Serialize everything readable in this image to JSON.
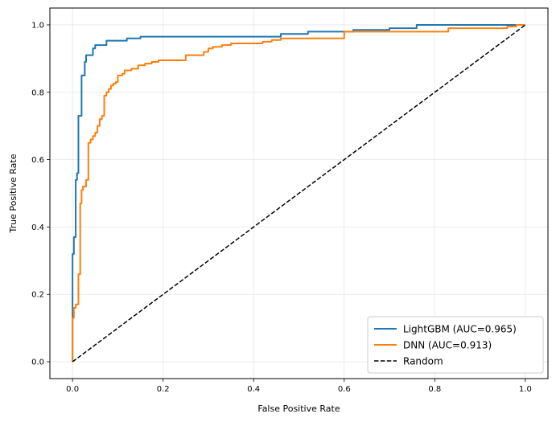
{
  "chart_data": {
    "type": "line",
    "xlabel": "False Positive Rate",
    "ylabel": "True Positive Rate",
    "xlim": [
      -0.05,
      1.05
    ],
    "ylim": [
      -0.05,
      1.05
    ],
    "xticks": [
      "0.0",
      "0.2",
      "0.4",
      "0.6",
      "0.8",
      "1.0"
    ],
    "yticks": [
      "0.0",
      "0.2",
      "0.4",
      "0.6",
      "0.8",
      "1.0"
    ],
    "grid": true,
    "legend_position": "lower-right",
    "series": [
      {
        "name": "LightGBM (AUC=0.965)",
        "color": "#1f77b4",
        "style": "solid",
        "x": [
          0.0,
          0.0,
          0.003,
          0.003,
          0.007,
          0.007,
          0.01,
          0.01,
          0.013,
          0.013,
          0.017,
          0.017,
          0.02,
          0.02,
          0.027,
          0.027,
          0.03,
          0.03,
          0.033,
          0.033,
          0.045,
          0.045,
          0.05,
          0.05,
          0.055,
          0.055,
          0.075,
          0.075,
          0.12,
          0.12,
          0.15,
          0.15,
          0.46,
          0.46,
          0.52,
          0.52,
          0.62,
          0.62,
          0.7,
          0.7,
          0.76,
          0.76,
          1.0
        ],
        "y": [
          0.0,
          0.32,
          0.32,
          0.37,
          0.37,
          0.54,
          0.54,
          0.56,
          0.56,
          0.73,
          0.73,
          0.73,
          0.73,
          0.85,
          0.85,
          0.89,
          0.89,
          0.91,
          0.91,
          0.91,
          0.91,
          0.93,
          0.93,
          0.94,
          0.94,
          0.94,
          0.94,
          0.953,
          0.953,
          0.96,
          0.96,
          0.965,
          0.965,
          0.973,
          0.973,
          0.98,
          0.98,
          0.985,
          0.985,
          0.99,
          0.99,
          1.0,
          1.0
        ]
      },
      {
        "name": "DNN (AUC=0.913)",
        "color": "#ff7f0e",
        "style": "solid",
        "x": [
          0.0,
          0.0,
          0.003,
          0.003,
          0.007,
          0.007,
          0.013,
          0.013,
          0.017,
          0.017,
          0.02,
          0.02,
          0.023,
          0.023,
          0.03,
          0.03,
          0.035,
          0.035,
          0.04,
          0.04,
          0.045,
          0.045,
          0.05,
          0.05,
          0.055,
          0.055,
          0.06,
          0.06,
          0.065,
          0.065,
          0.07,
          0.07,
          0.075,
          0.075,
          0.08,
          0.08,
          0.085,
          0.085,
          0.09,
          0.09,
          0.095,
          0.095,
          0.1,
          0.1,
          0.11,
          0.11,
          0.115,
          0.115,
          0.13,
          0.13,
          0.145,
          0.145,
          0.16,
          0.16,
          0.175,
          0.175,
          0.19,
          0.19,
          0.25,
          0.25,
          0.29,
          0.29,
          0.3,
          0.3,
          0.31,
          0.31,
          0.33,
          0.33,
          0.35,
          0.35,
          0.42,
          0.42,
          0.44,
          0.44,
          0.46,
          0.46,
          0.6,
          0.6,
          0.83,
          0.83,
          0.96,
          0.96,
          0.98,
          0.98,
          1.0
        ],
        "y": [
          0.0,
          0.13,
          0.13,
          0.16,
          0.16,
          0.17,
          0.17,
          0.26,
          0.26,
          0.47,
          0.47,
          0.51,
          0.51,
          0.52,
          0.52,
          0.54,
          0.54,
          0.65,
          0.65,
          0.66,
          0.66,
          0.67,
          0.67,
          0.68,
          0.68,
          0.7,
          0.7,
          0.72,
          0.72,
          0.73,
          0.73,
          0.79,
          0.79,
          0.8,
          0.8,
          0.81,
          0.81,
          0.82,
          0.82,
          0.825,
          0.825,
          0.83,
          0.83,
          0.85,
          0.85,
          0.855,
          0.855,
          0.865,
          0.865,
          0.87,
          0.87,
          0.88,
          0.88,
          0.885,
          0.885,
          0.89,
          0.89,
          0.895,
          0.895,
          0.91,
          0.91,
          0.92,
          0.92,
          0.93,
          0.93,
          0.935,
          0.935,
          0.94,
          0.94,
          0.945,
          0.945,
          0.95,
          0.95,
          0.955,
          0.955,
          0.96,
          0.96,
          0.98,
          0.98,
          0.99,
          0.99,
          0.995,
          0.995,
          1.0,
          1.0
        ]
      },
      {
        "name": "Random",
        "color": "#000000",
        "style": "dashed",
        "x": [
          0.0,
          1.0
        ],
        "y": [
          0.0,
          1.0
        ]
      }
    ]
  }
}
